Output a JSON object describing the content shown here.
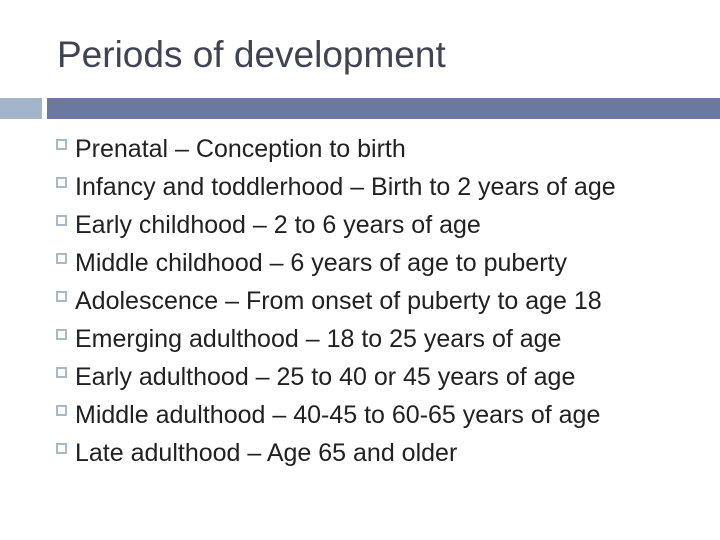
{
  "slide": {
    "title": "Periods of development",
    "bullets": [
      "Prenatal – Conception to birth",
      "Infancy and toddlerhood – Birth to 2 years of age",
      "Early childhood – 2 to 6 years of age",
      "Middle childhood – 6 years of age to puberty",
      "Adolescence – From onset of puberty to age 18",
      "Emerging adulthood – 18 to 25 years of age",
      "Early adulthood – 25 to 40 or 45 years of age",
      "Middle adulthood – 40-45 to 60-65 years of age",
      "Late adulthood – Age 65 and older"
    ],
    "colors": {
      "background": "#ffffff",
      "title_text": "#404352",
      "body_text": "#212121",
      "accent_bar_dark": "#6d78a1",
      "accent_bar_light": "#a2b5c9",
      "bullet_marker_outline": "#a8bac7"
    }
  }
}
